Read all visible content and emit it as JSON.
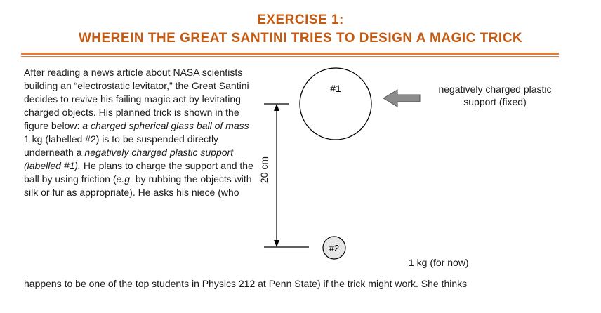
{
  "header": {
    "line1": "EXERCISE 1:",
    "line2": "WHEREIN THE GREAT SANTINI TRIES TO DESIGN A MAGIC TRICK"
  },
  "body": {
    "p1": "After reading a news article about NASA scientists building an “electrostatic levitator,” the Great Santini decides to revive his failing magic act by levitating charged objects. His planned trick is shown in the figure below: ",
    "p1_italic1": "a charged spherical glass ball of mass",
    "p1_mid": " 1 kg (labelled #2) is to be suspended directly underneath a ",
    "p1_italic2": "negatively charged plastic support (labelled #1).",
    "p1_end": "  He plans to charge the support and the ball by using friction (",
    "p1_eg": "e.g.",
    "p1_tail": " by rubbing the objects with silk or fur as appropriate). He asks his niece (who",
    "last_line": "happens to be one of the top students in Physics 212 at Penn State) if the trick might work.  She thinks"
  },
  "figure": {
    "support_number": "#1",
    "ball_number": "#2",
    "distance": "20 cm",
    "support_label": "negatively charged plastic support (fixed)",
    "ball_mass": "1 kg (for now)"
  },
  "colors": {
    "accent": "#c55a11",
    "rule": "#e07b39",
    "arrow": "#808080",
    "ball_fill": "#e6e6e6"
  }
}
